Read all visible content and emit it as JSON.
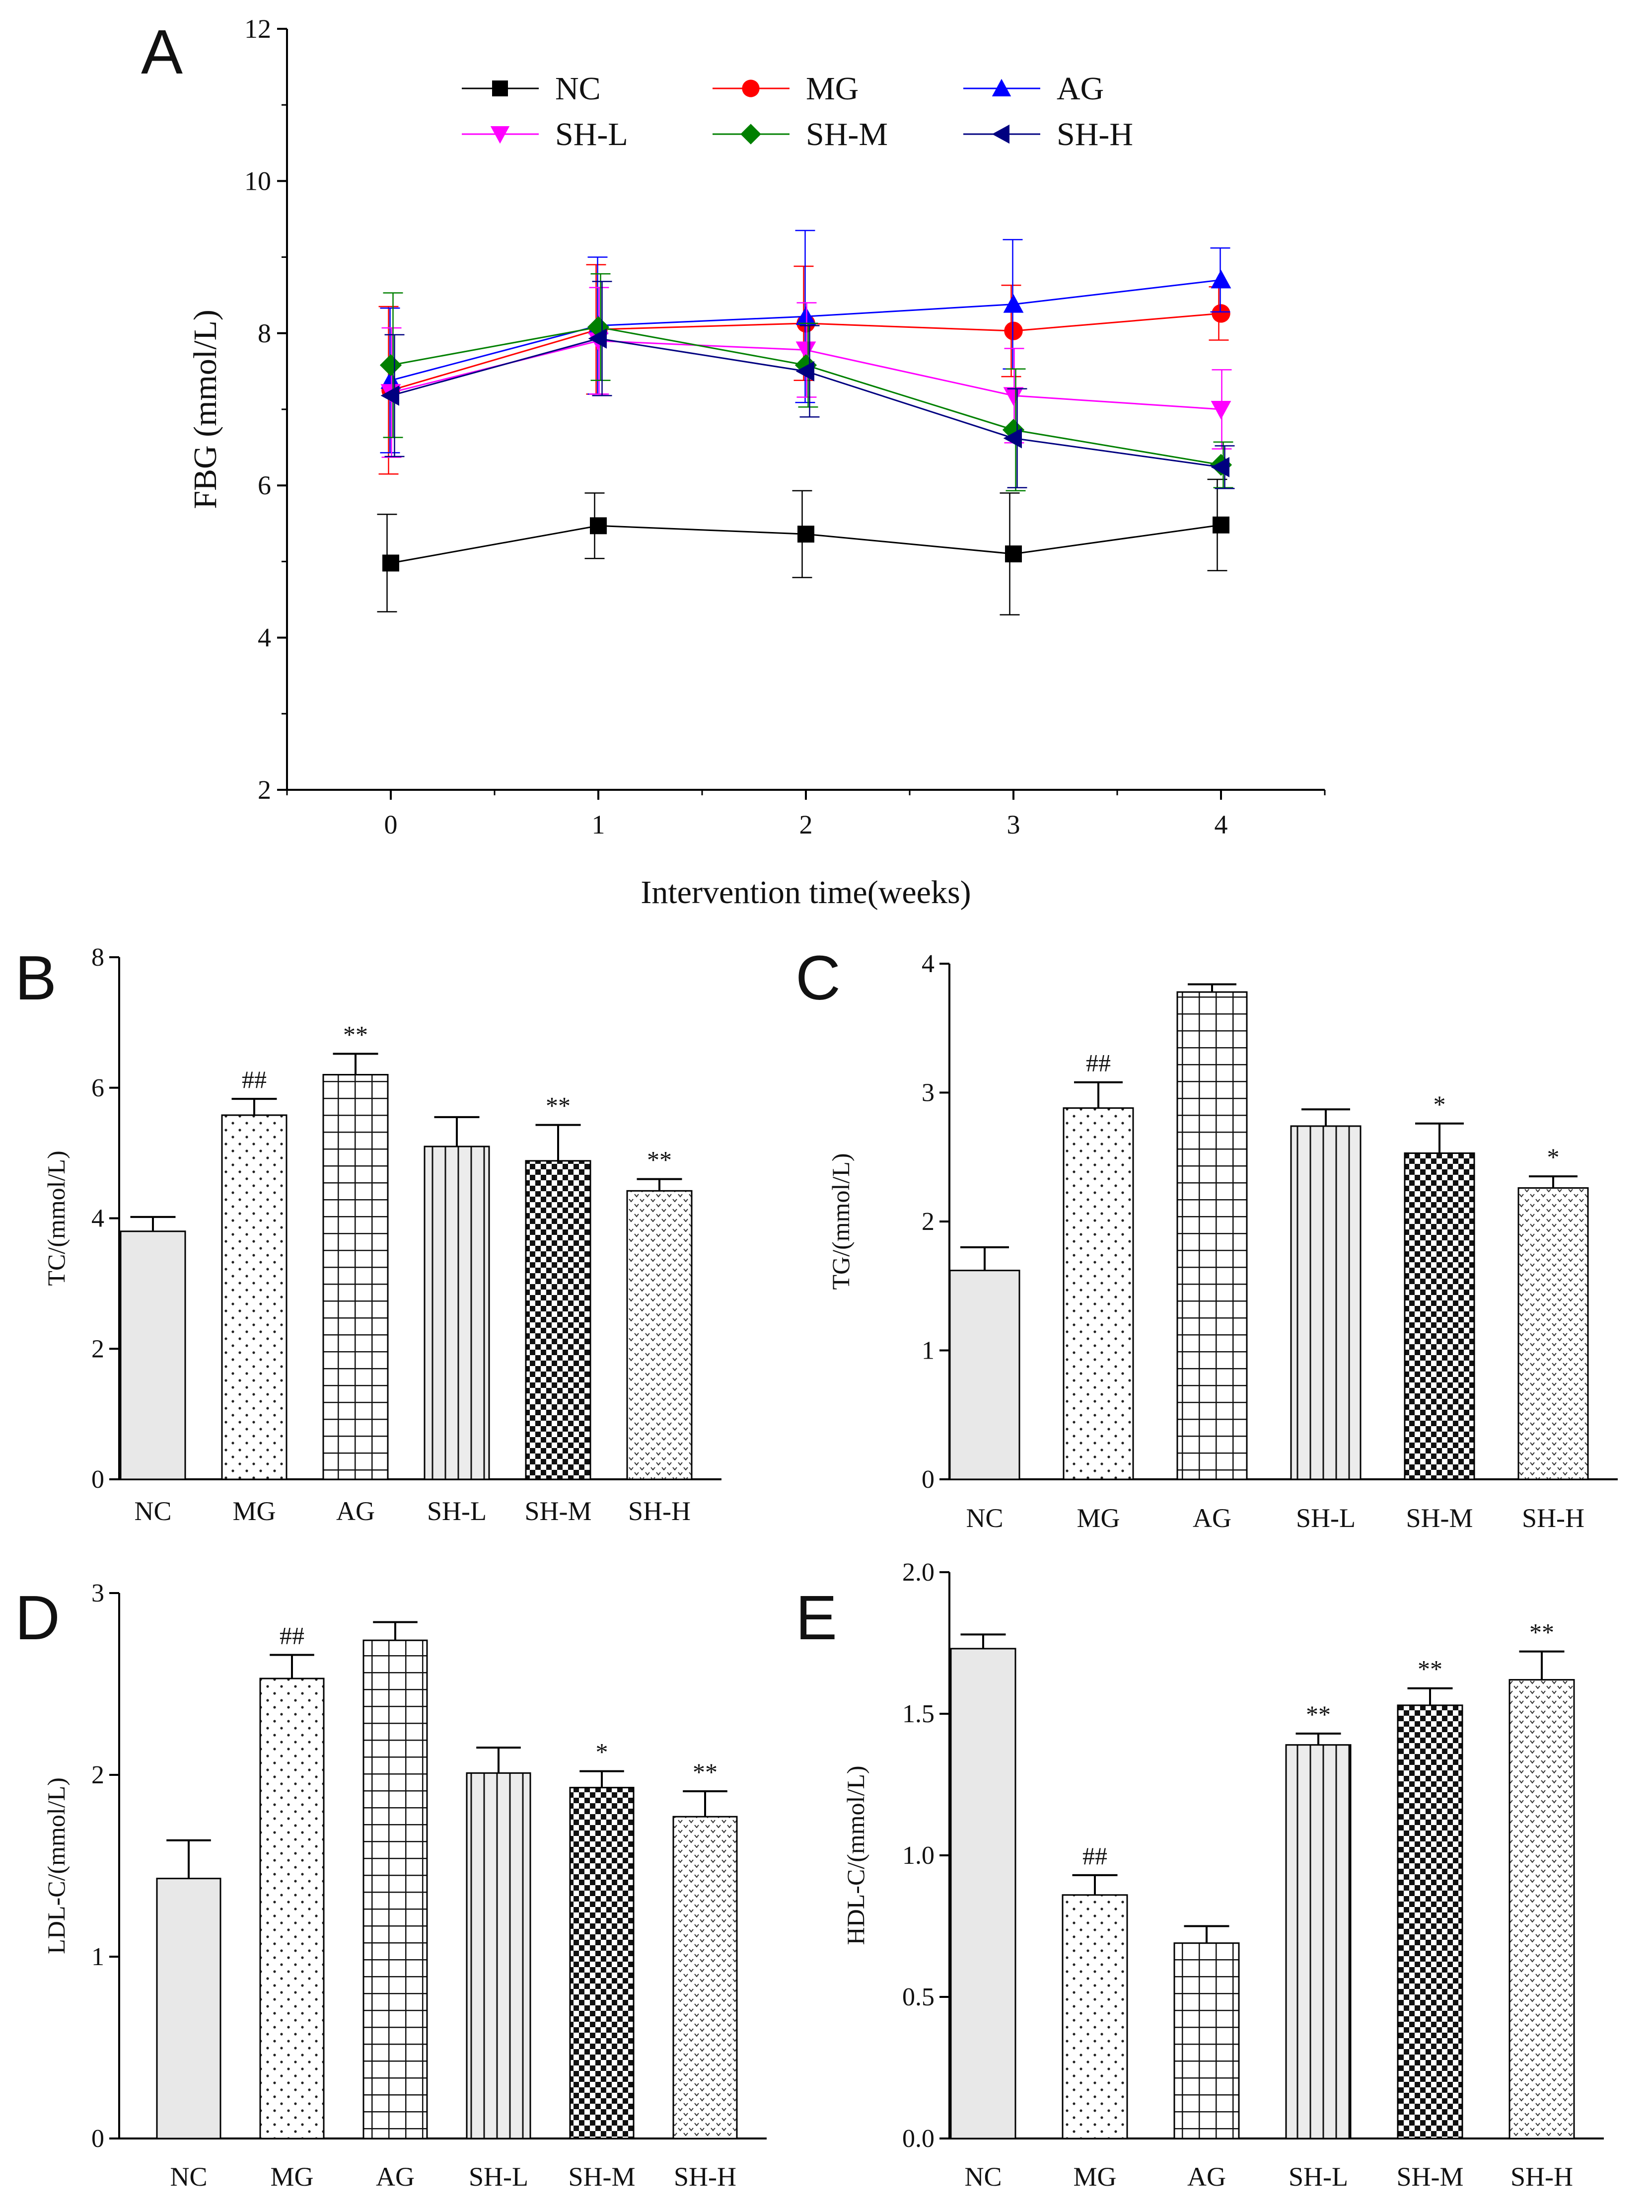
{
  "chart_data": [
    {
      "panel": "A",
      "type": "line",
      "xlabel": "Intervention time(weeks)",
      "ylabel": "FBG (mmol/L)",
      "x": [
        0,
        1,
        2,
        3,
        4
      ],
      "xlim": [
        -0.5,
        4.5
      ],
      "ylim": [
        2,
        12
      ],
      "yticks": [
        2,
        4,
        6,
        8,
        10,
        12
      ],
      "xticks": [
        0,
        1,
        2,
        3,
        4
      ],
      "legend": "top-center",
      "series": [
        {
          "name": "NC",
          "color": "#000000",
          "marker": "square",
          "values": [
            4.98,
            5.47,
            5.36,
            5.1,
            5.48
          ],
          "errors": [
            0.64,
            0.43,
            0.57,
            0.8,
            0.6
          ]
        },
        {
          "name": "MG",
          "color": "#ff0000",
          "marker": "circle",
          "values": [
            7.25,
            8.05,
            8.13,
            8.03,
            8.26
          ],
          "errors": [
            1.1,
            0.85,
            0.75,
            0.6,
            0.35
          ]
        },
        {
          "name": "AG",
          "color": "#0000ff",
          "marker": "triangle-up",
          "values": [
            7.38,
            8.1,
            8.22,
            8.38,
            8.7
          ],
          "errors": [
            0.95,
            0.9,
            1.13,
            0.85,
            0.42
          ]
        },
        {
          "name": "SH-L",
          "color": "#ff00ff",
          "marker": "triangle-down",
          "values": [
            7.22,
            7.9,
            7.78,
            7.18,
            7.0
          ],
          "errors": [
            0.85,
            0.7,
            0.62,
            0.62,
            0.52
          ]
        },
        {
          "name": "SH-M",
          "color": "#008000",
          "marker": "diamond",
          "values": [
            7.58,
            8.08,
            7.58,
            6.73,
            6.27
          ],
          "errors": [
            0.95,
            0.7,
            0.55,
            0.8,
            0.3
          ]
        },
        {
          "name": "SH-H",
          "color": "#000080",
          "marker": "triangle-left",
          "values": [
            7.18,
            7.93,
            7.5,
            6.62,
            6.24
          ],
          "errors": [
            0.8,
            0.75,
            0.6,
            0.65,
            0.28
          ]
        }
      ]
    },
    {
      "panel": "B",
      "type": "bar",
      "ylabel": "TC/(mmol/L)",
      "categories": [
        "NC",
        "MG",
        "AG",
        "SH-L",
        "SH-M",
        "SH-H"
      ],
      "values": [
        3.8,
        5.58,
        6.2,
        5.1,
        4.88,
        4.42
      ],
      "errors": [
        0.22,
        0.25,
        0.32,
        0.45,
        0.55,
        0.18
      ],
      "annotations": [
        "",
        "##",
        "**",
        "",
        "**",
        "**"
      ],
      "ylim": [
        0,
        8
      ],
      "yticks": [
        0,
        2,
        4,
        6,
        8
      ]
    },
    {
      "panel": "C",
      "type": "bar",
      "ylabel": "TG/(mmol/L)",
      "categories": [
        "NC",
        "MG",
        "AG",
        "SH-L",
        "SH-M",
        "SH-H"
      ],
      "values": [
        1.62,
        2.88,
        3.78,
        2.74,
        2.53,
        2.26
      ],
      "errors": [
        0.18,
        0.2,
        0.06,
        0.13,
        0.23,
        0.09
      ],
      "annotations": [
        "",
        "##",
        "",
        "",
        "*",
        "*"
      ],
      "ylim": [
        0,
        4
      ],
      "yticks": [
        0,
        1,
        2,
        3,
        4
      ]
    },
    {
      "panel": "D",
      "type": "bar",
      "ylabel": "LDL-C/(mmol/L)",
      "categories": [
        "NC",
        "MG",
        "AG",
        "SH-L",
        "SH-M",
        "SH-H"
      ],
      "values": [
        1.43,
        2.53,
        2.74,
        2.01,
        1.93,
        1.77
      ],
      "errors": [
        0.21,
        0.13,
        0.1,
        0.14,
        0.09,
        0.14
      ],
      "annotations": [
        "",
        "##",
        "",
        "",
        "*",
        "**"
      ],
      "ylim": [
        0,
        3
      ],
      "yticks": [
        0,
        1,
        2,
        3
      ]
    },
    {
      "panel": "E",
      "type": "bar",
      "ylabel": "HDL-C/(mmol/L)",
      "categories": [
        "NC",
        "MG",
        "AG",
        "SH-L",
        "SH-M",
        "SH-H"
      ],
      "values": [
        1.73,
        0.86,
        0.69,
        1.39,
        1.53,
        1.62
      ],
      "errors": [
        0.05,
        0.07,
        0.06,
        0.04,
        0.06,
        0.1
      ],
      "annotations": [
        "",
        "##",
        "",
        "**",
        "**",
        "**"
      ],
      "ylim": [
        0,
        2.0
      ],
      "yticks": [
        "0.0",
        "0.5",
        "1.0",
        "1.5",
        "2.0"
      ]
    }
  ]
}
